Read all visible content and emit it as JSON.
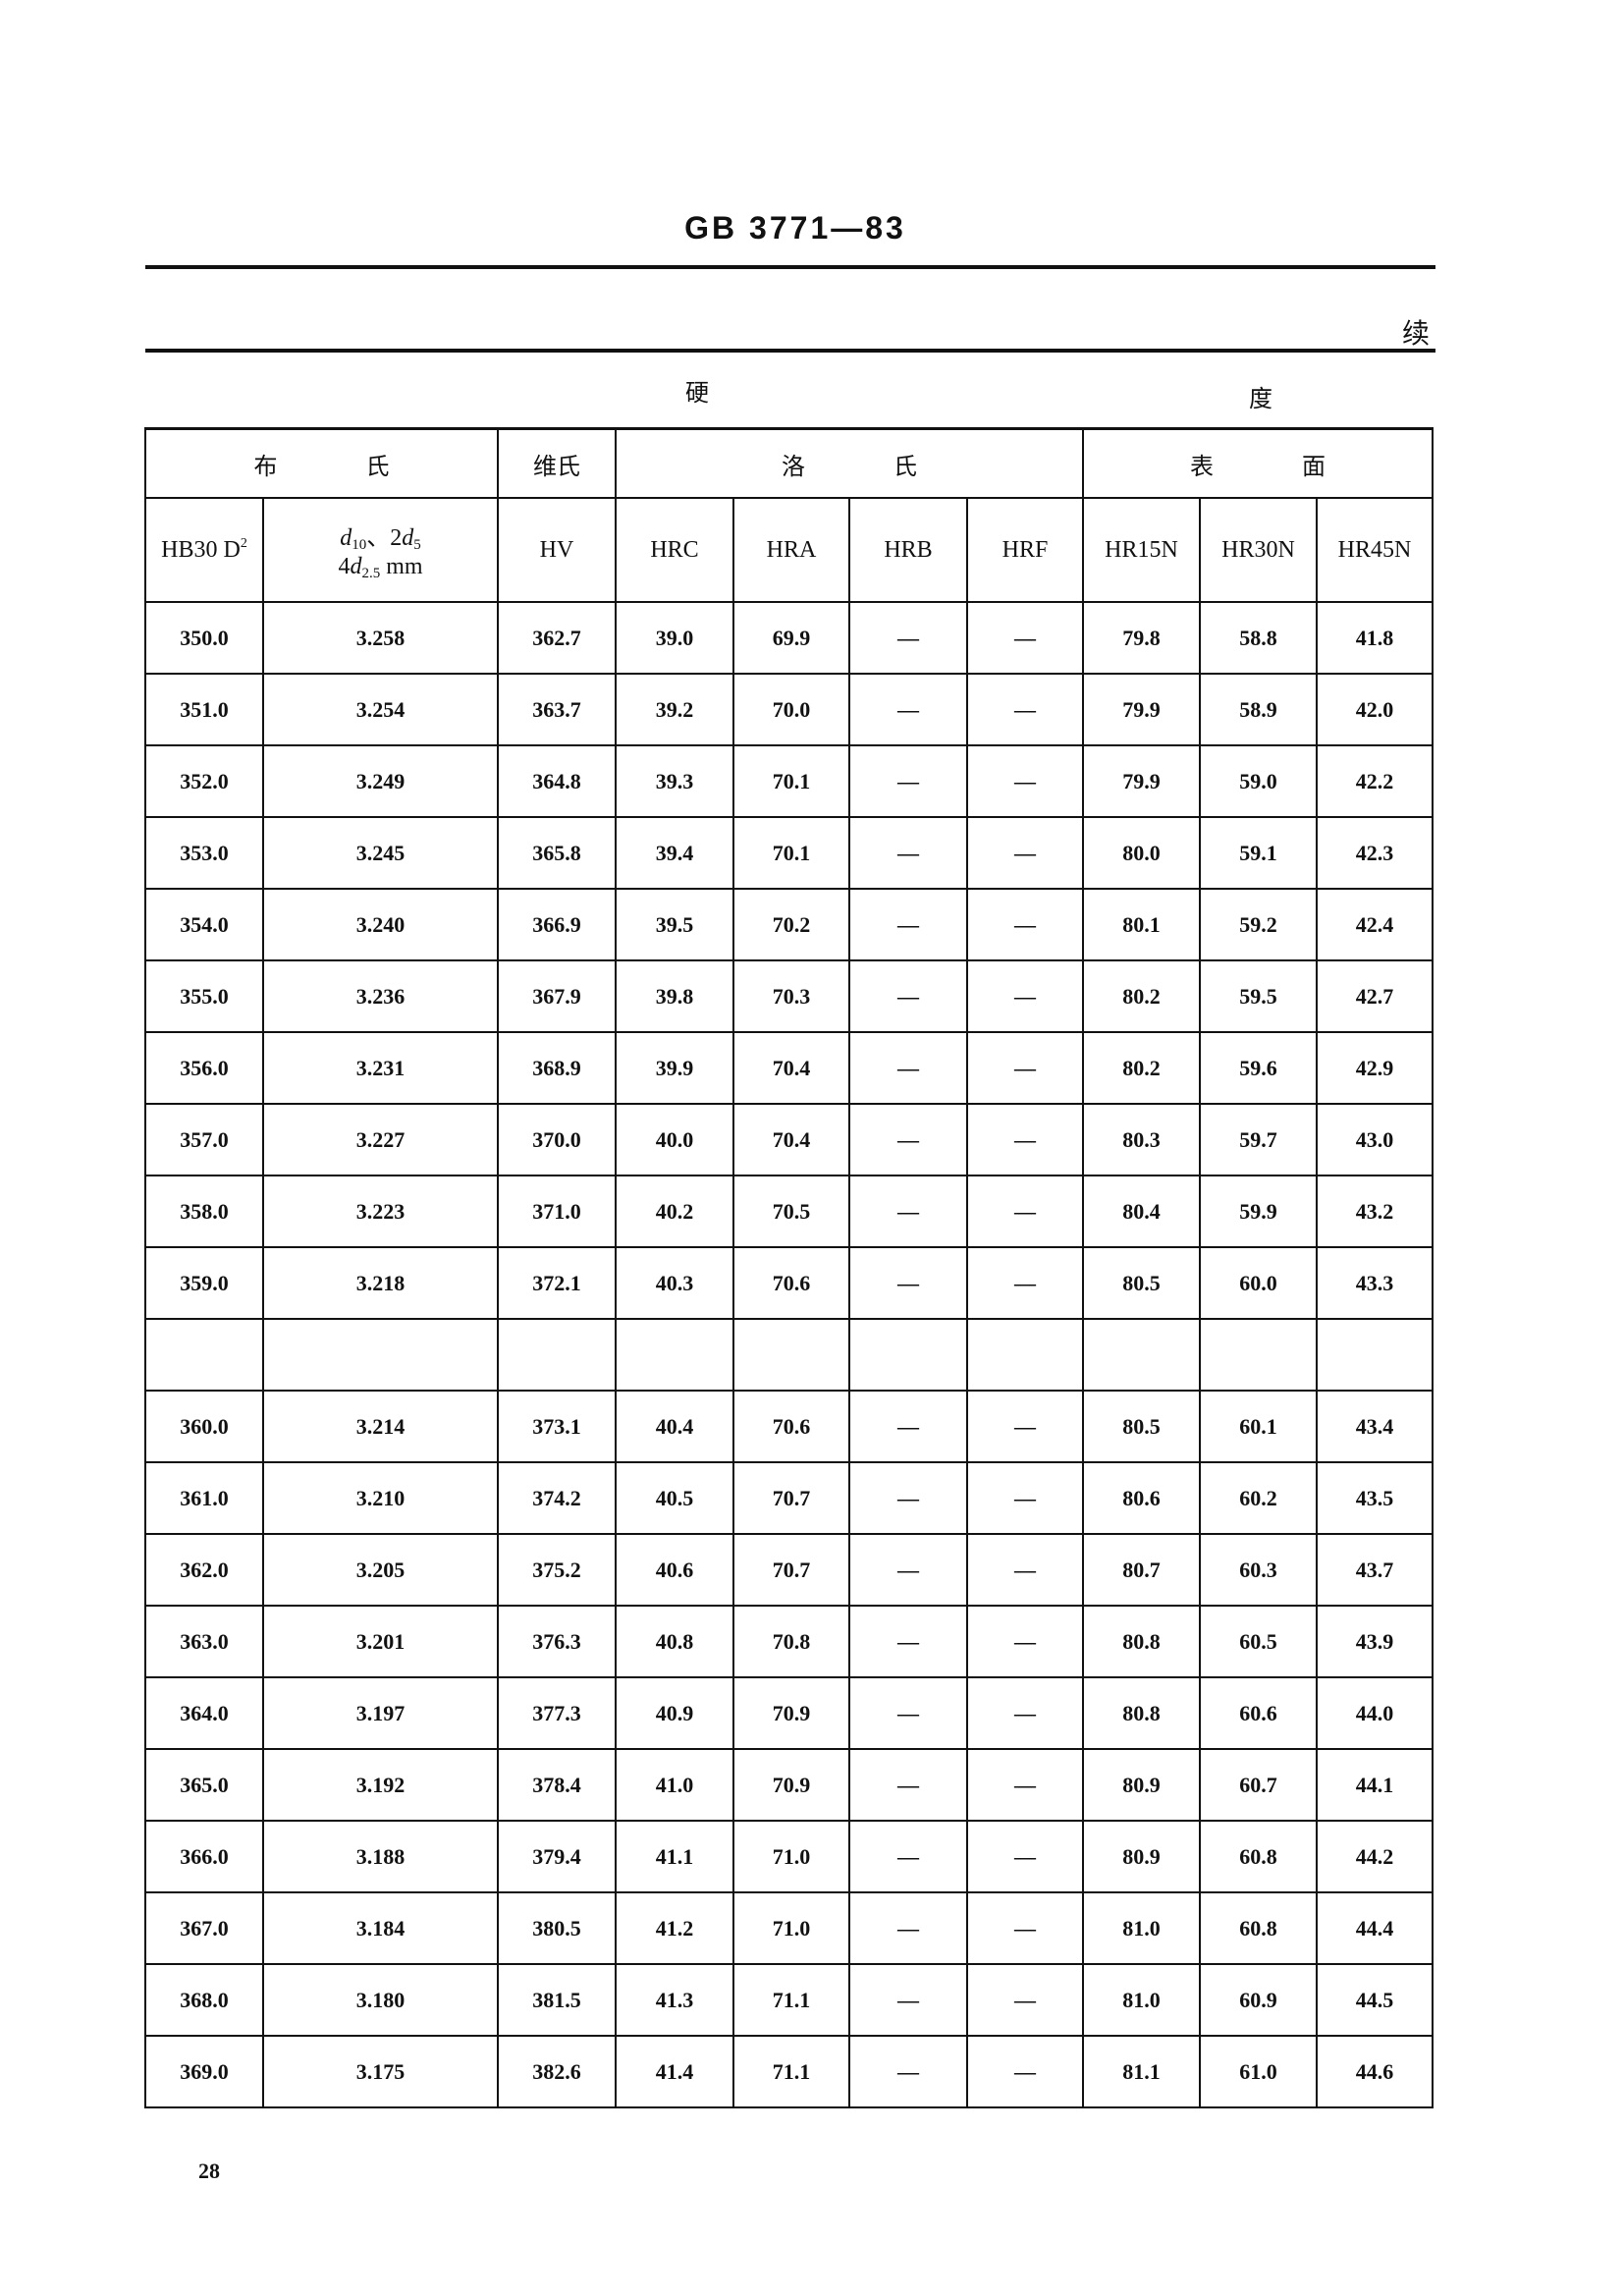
{
  "header": {
    "standard": "GB 3771—83",
    "continued": "续"
  },
  "table": {
    "group_label_1": "硬",
    "group_label_2": "度",
    "brinell": [
      "布",
      "氏"
    ],
    "vickers": "维氏",
    "rockwell": [
      "洛",
      "氏"
    ],
    "superficial": [
      "表",
      "面"
    ],
    "columns": {
      "hb": {
        "main": "HB30 D",
        "sup": "2"
      },
      "d": {
        "d10": "d",
        "d10_sub": "10",
        "sep": "、2",
        "d5": "d",
        "d5_sub": "5",
        "line2_pre": "4",
        "d25": "d",
        "d25_sub": "2.5",
        "unit": " mm"
      },
      "rest": [
        "HV",
        "HRC",
        "HRA",
        "HRB",
        "HRF",
        "HR15N",
        "HR30N",
        "HR45N"
      ]
    },
    "rows": [
      [
        "350.0",
        "3.258",
        "362.7",
        "39.0",
        "69.9",
        "—",
        "—",
        "79.8",
        "58.8",
        "41.8"
      ],
      [
        "351.0",
        "3.254",
        "363.7",
        "39.2",
        "70.0",
        "—",
        "—",
        "79.9",
        "58.9",
        "42.0"
      ],
      [
        "352.0",
        "3.249",
        "364.8",
        "39.3",
        "70.1",
        "—",
        "—",
        "79.9",
        "59.0",
        "42.2"
      ],
      [
        "353.0",
        "3.245",
        "365.8",
        "39.4",
        "70.1",
        "—",
        "—",
        "80.0",
        "59.1",
        "42.3"
      ],
      [
        "354.0",
        "3.240",
        "366.9",
        "39.5",
        "70.2",
        "—",
        "—",
        "80.1",
        "59.2",
        "42.4"
      ],
      [
        "355.0",
        "3.236",
        "367.9",
        "39.8",
        "70.3",
        "—",
        "—",
        "80.2",
        "59.5",
        "42.7"
      ],
      [
        "356.0",
        "3.231",
        "368.9",
        "39.9",
        "70.4",
        "—",
        "—",
        "80.2",
        "59.6",
        "42.9"
      ],
      [
        "357.0",
        "3.227",
        "370.0",
        "40.0",
        "70.4",
        "—",
        "—",
        "80.3",
        "59.7",
        "43.0"
      ],
      [
        "358.0",
        "3.223",
        "371.0",
        "40.2",
        "70.5",
        "—",
        "—",
        "80.4",
        "59.9",
        "43.2"
      ],
      [
        "359.0",
        "3.218",
        "372.1",
        "40.3",
        "70.6",
        "—",
        "—",
        "80.5",
        "60.0",
        "43.3"
      ],
      [
        "",
        "",
        "",
        "",
        "",
        "",
        "",
        "",
        "",
        ""
      ],
      [
        "360.0",
        "3.214",
        "373.1",
        "40.4",
        "70.6",
        "—",
        "—",
        "80.5",
        "60.1",
        "43.4"
      ],
      [
        "361.0",
        "3.210",
        "374.2",
        "40.5",
        "70.7",
        "—",
        "—",
        "80.6",
        "60.2",
        "43.5"
      ],
      [
        "362.0",
        "3.205",
        "375.2",
        "40.6",
        "70.7",
        "—",
        "—",
        "80.7",
        "60.3",
        "43.7"
      ],
      [
        "363.0",
        "3.201",
        "376.3",
        "40.8",
        "70.8",
        "—",
        "—",
        "80.8",
        "60.5",
        "43.9"
      ],
      [
        "364.0",
        "3.197",
        "377.3",
        "40.9",
        "70.9",
        "—",
        "—",
        "80.8",
        "60.6",
        "44.0"
      ],
      [
        "365.0",
        "3.192",
        "378.4",
        "41.0",
        "70.9",
        "—",
        "—",
        "80.9",
        "60.7",
        "44.1"
      ],
      [
        "366.0",
        "3.188",
        "379.4",
        "41.1",
        "71.0",
        "—",
        "—",
        "80.9",
        "60.8",
        "44.2"
      ],
      [
        "367.0",
        "3.184",
        "380.5",
        "41.2",
        "71.0",
        "—",
        "—",
        "81.0",
        "60.8",
        "44.4"
      ],
      [
        "368.0",
        "3.180",
        "381.5",
        "41.3",
        "71.1",
        "—",
        "—",
        "81.0",
        "60.9",
        "44.5"
      ],
      [
        "369.0",
        "3.175",
        "382.6",
        "41.4",
        "71.1",
        "—",
        "—",
        "81.1",
        "61.0",
        "44.6"
      ]
    ]
  },
  "footer": {
    "page_number": "28"
  }
}
